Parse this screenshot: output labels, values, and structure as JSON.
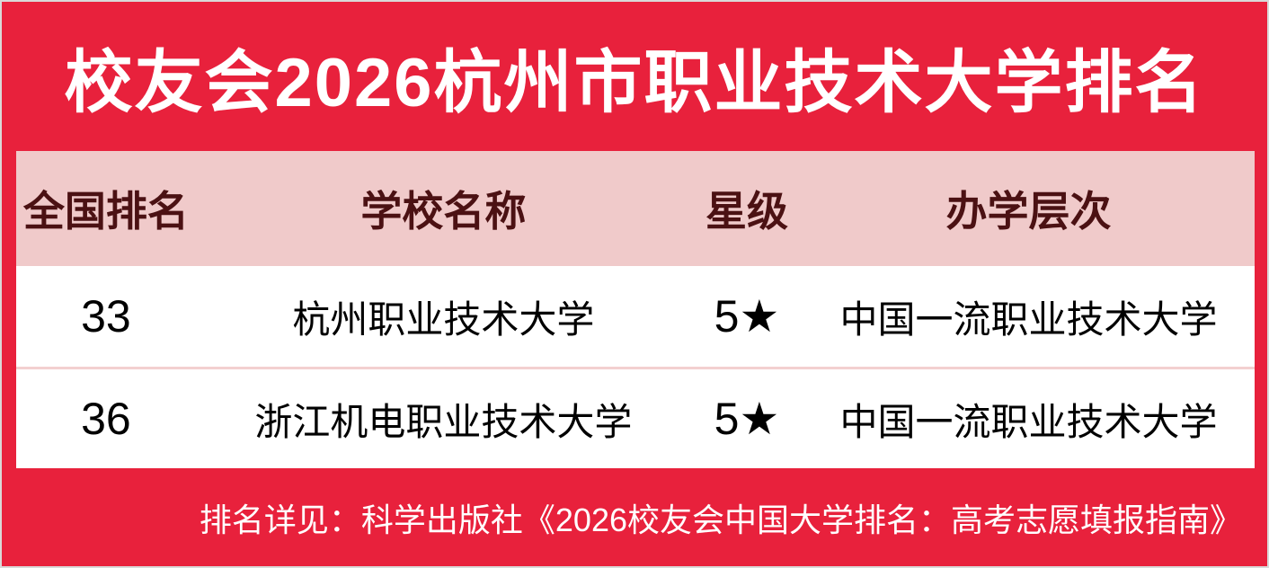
{
  "title": "校友会2026杭州市职业技术大学排名",
  "colors": {
    "red": "#e8213c",
    "pink": "#f0caca",
    "divider": "#f3d0d0",
    "maroon": "#4b1113",
    "ink": "#000000",
    "paper": "#ffffff",
    "edge": "#d9d9d9"
  },
  "table": {
    "headers": [
      "全国排名",
      "学校名称",
      "星级",
      "办学层次"
    ],
    "rows": [
      {
        "rank": "33",
        "school": "杭州职业技术大学",
        "star": "5★",
        "level": "中国一流职业技术大学"
      },
      {
        "rank": "36",
        "school": "浙江机电职业技术大学",
        "star": "5★",
        "level": "中国一流职业技术大学"
      }
    ]
  },
  "footer": {
    "note": "排名详见：科学出版社《2026校友会中国大学排名：高考志愿填报指南》"
  },
  "chart_data": {
    "type": "table",
    "title": "校友会2026杭州市职业技术大学排名",
    "columns": [
      "全国排名",
      "学校名称",
      "星级",
      "办学层次"
    ],
    "rows": [
      [
        "33",
        "杭州职业技术大学",
        "5★",
        "中国一流职业技术大学"
      ],
      [
        "36",
        "浙江机电职业技术大学",
        "5★",
        "中国一流职业技术大学"
      ]
    ],
    "source_note": "排名详见：科学出版社《2026校友会中国大学排名：高考志愿填报指南》"
  }
}
